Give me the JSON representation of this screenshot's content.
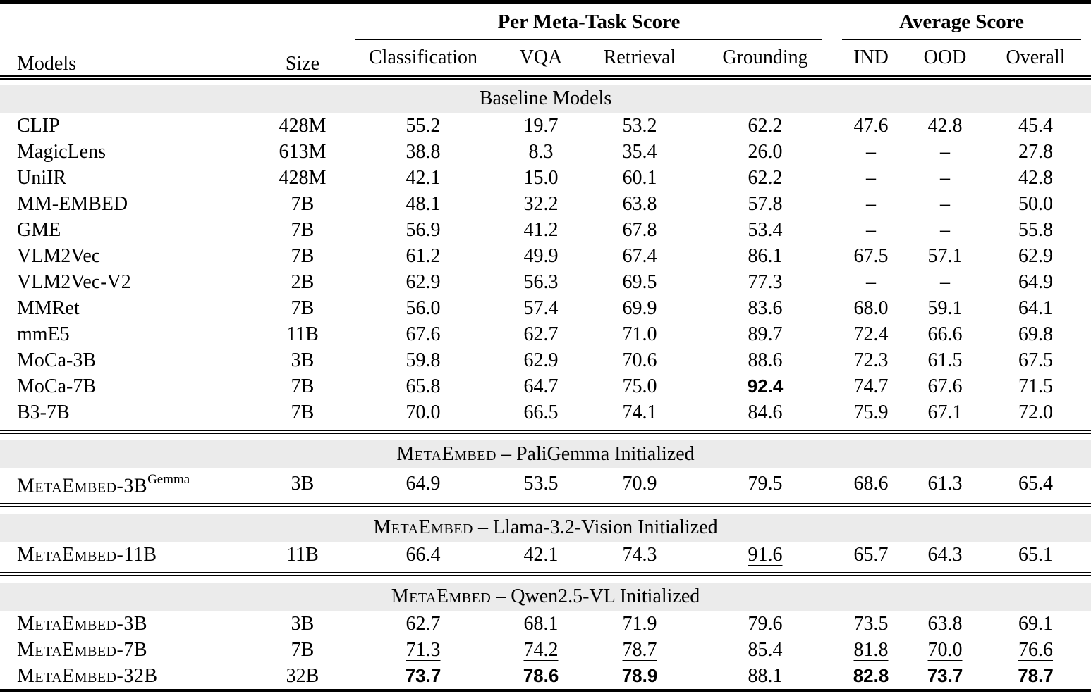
{
  "header": {
    "models": "Models",
    "size": "Size",
    "group_meta": "Per Meta-Task Score",
    "group_avg": "Average Score",
    "subcolumns": [
      "Classification",
      "VQA",
      "Retrieval",
      "Grounding",
      "IND",
      "OOD",
      "Overall"
    ]
  },
  "sections": [
    {
      "title_sc": "",
      "title_rest": "Baseline Models",
      "rows": [
        {
          "model": "CLIP",
          "sc": false,
          "sup": "",
          "size": "428M",
          "values": [
            "55.2",
            "19.7",
            "53.2",
            "62.2",
            "47.6",
            "42.8",
            "45.4"
          ],
          "marks": [
            "",
            "",
            "",
            "",
            "",
            "",
            ""
          ]
        },
        {
          "model": "MagicLens",
          "sc": false,
          "sup": "",
          "size": "613M",
          "values": [
            "38.8",
            "8.3",
            "35.4",
            "26.0",
            "–",
            "–",
            "27.8"
          ],
          "marks": [
            "",
            "",
            "",
            "",
            "",
            "",
            ""
          ]
        },
        {
          "model": "UniIR",
          "sc": false,
          "sup": "",
          "size": "428M",
          "values": [
            "42.1",
            "15.0",
            "60.1",
            "62.2",
            "–",
            "–",
            "42.8"
          ],
          "marks": [
            "",
            "",
            "",
            "",
            "",
            "",
            ""
          ]
        },
        {
          "model": "MM-EMBED",
          "sc": false,
          "sup": "",
          "size": "7B",
          "values": [
            "48.1",
            "32.2",
            "63.8",
            "57.8",
            "–",
            "–",
            "50.0"
          ],
          "marks": [
            "",
            "",
            "",
            "",
            "",
            "",
            ""
          ]
        },
        {
          "model": "GME",
          "sc": false,
          "sup": "",
          "size": "7B",
          "values": [
            "56.9",
            "41.2",
            "67.8",
            "53.4",
            "–",
            "–",
            "55.8"
          ],
          "marks": [
            "",
            "",
            "",
            "",
            "",
            "",
            ""
          ]
        },
        {
          "model": "VLM2Vec",
          "sc": false,
          "sup": "",
          "size": "7B",
          "values": [
            "61.2",
            "49.9",
            "67.4",
            "86.1",
            "67.5",
            "57.1",
            "62.9"
          ],
          "marks": [
            "",
            "",
            "",
            "",
            "",
            "",
            ""
          ]
        },
        {
          "model": "VLM2Vec-V2",
          "sc": false,
          "sup": "",
          "size": "2B",
          "values": [
            "62.9",
            "56.3",
            "69.5",
            "77.3",
            "–",
            "–",
            "64.9"
          ],
          "marks": [
            "",
            "",
            "",
            "",
            "",
            "",
            ""
          ]
        },
        {
          "model": "MMRet",
          "sc": false,
          "sup": "",
          "size": "7B",
          "values": [
            "56.0",
            "57.4",
            "69.9",
            "83.6",
            "68.0",
            "59.1",
            "64.1"
          ],
          "marks": [
            "",
            "",
            "",
            "",
            "",
            "",
            ""
          ]
        },
        {
          "model": "mmE5",
          "sc": false,
          "sup": "",
          "size": "11B",
          "values": [
            "67.6",
            "62.7",
            "71.0",
            "89.7",
            "72.4",
            "66.6",
            "69.8"
          ],
          "marks": [
            "",
            "",
            "",
            "",
            "",
            "",
            ""
          ]
        },
        {
          "model": "MoCa-3B",
          "sc": false,
          "sup": "",
          "size": "3B",
          "values": [
            "59.8",
            "62.9",
            "70.6",
            "88.6",
            "72.3",
            "61.5",
            "67.5"
          ],
          "marks": [
            "",
            "",
            "",
            "",
            "",
            "",
            ""
          ]
        },
        {
          "model": "MoCa-7B",
          "sc": false,
          "sup": "",
          "size": "7B",
          "values": [
            "65.8",
            "64.7",
            "75.0",
            "92.4",
            "74.7",
            "67.6",
            "71.5"
          ],
          "marks": [
            "",
            "",
            "",
            "b",
            "",
            "",
            ""
          ]
        },
        {
          "model": "B3-7B",
          "sc": false,
          "sup": "",
          "size": "7B",
          "values": [
            "70.0",
            "66.5",
            "74.1",
            "84.6",
            "75.9",
            "67.1",
            "72.0"
          ],
          "marks": [
            "",
            "",
            "",
            "",
            "",
            "",
            ""
          ]
        }
      ]
    },
    {
      "title_sc": "MetaEmbed",
      "title_rest": " – PaliGemma Initialized",
      "rows": [
        {
          "model": "MetaEmbed-3B",
          "sc": true,
          "sup": "Gemma",
          "size": "3B",
          "values": [
            "64.9",
            "53.5",
            "70.9",
            "79.5",
            "68.6",
            "61.3",
            "65.4"
          ],
          "marks": [
            "",
            "",
            "",
            "",
            "",
            "",
            ""
          ]
        }
      ]
    },
    {
      "title_sc": "MetaEmbed",
      "title_rest": " – Llama-3.2-Vision Initialized",
      "rows": [
        {
          "model": "MetaEmbed-11B",
          "sc": true,
          "sup": "",
          "size": "11B",
          "values": [
            "66.4",
            "42.1",
            "74.3",
            "91.6",
            "65.7",
            "64.3",
            "65.1"
          ],
          "marks": [
            "",
            "",
            "",
            "u",
            "",
            "",
            ""
          ]
        }
      ]
    },
    {
      "title_sc": "MetaEmbed",
      "title_rest": " – Qwen2.5-VL Initialized",
      "rows": [
        {
          "model": "MetaEmbed-3B",
          "sc": true,
          "sup": "",
          "size": "3B",
          "values": [
            "62.7",
            "68.1",
            "71.9",
            "79.6",
            "73.5",
            "63.8",
            "69.1"
          ],
          "marks": [
            "",
            "",
            "",
            "",
            "",
            "",
            ""
          ]
        },
        {
          "model": "MetaEmbed-7B",
          "sc": true,
          "sup": "",
          "size": "7B",
          "values": [
            "71.3",
            "74.2",
            "78.7",
            "85.4",
            "81.8",
            "70.0",
            "76.6"
          ],
          "marks": [
            "u",
            "u",
            "u",
            "",
            "u",
            "u",
            "u"
          ]
        },
        {
          "model": "MetaEmbed-32B",
          "sc": true,
          "sup": "",
          "size": "32B",
          "values": [
            "73.7",
            "78.6",
            "78.9",
            "88.1",
            "82.8",
            "73.7",
            "78.7"
          ],
          "marks": [
            "b",
            "b",
            "b",
            "",
            "b",
            "b",
            "b"
          ]
        }
      ]
    }
  ]
}
